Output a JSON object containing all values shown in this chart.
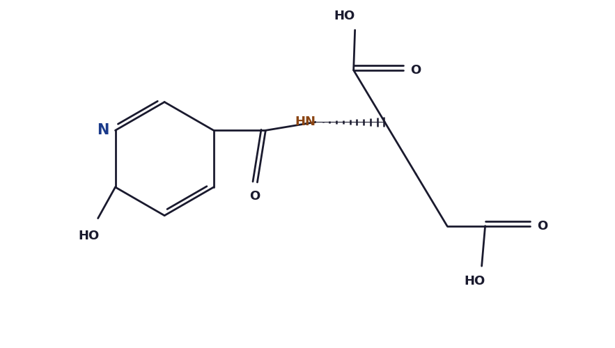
{
  "background_color": "#ffffff",
  "line_color": "#1a1a2e",
  "line_width": 2.0,
  "figsize": [
    8.83,
    5.0
  ],
  "dpi": 100,
  "xlim": [
    0,
    8.83
  ],
  "ylim": [
    0,
    5.0
  ]
}
